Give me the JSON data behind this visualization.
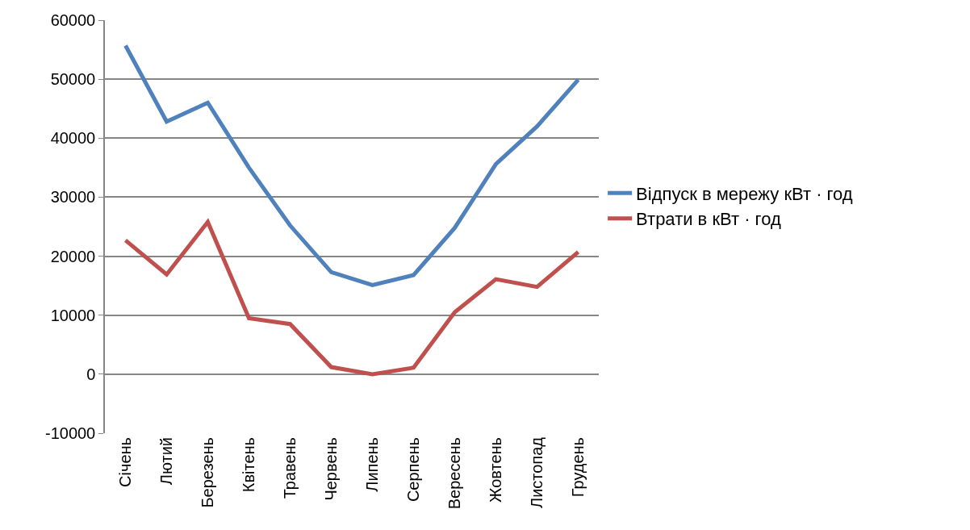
{
  "chart_data": {
    "type": "line",
    "categories": [
      "Січень",
      "Лютий",
      "Березень",
      "Квітень",
      "Травень",
      "Червень",
      "Липень",
      "Серпень",
      "Вересень",
      "Жовтень",
      "Листопад",
      "Грудень"
    ],
    "series": [
      {
        "name": "Відпуск в мережу кВт · год",
        "color": "#4f81bd",
        "values": [
          55700,
          42800,
          46000,
          35000,
          25200,
          17300,
          15100,
          16800,
          24800,
          35600,
          42000,
          49900
        ]
      },
      {
        "name": "Втрати в кВт · год",
        "color": "#c0504d",
        "values": [
          22700,
          16900,
          25800,
          9500,
          8500,
          1200,
          0,
          1100,
          10500,
          16100,
          14800,
          20700
        ]
      }
    ],
    "ylim": [
      -10000,
      60000
    ],
    "yticks": [
      -10000,
      0,
      10000,
      20000,
      30000,
      40000,
      50000,
      60000
    ],
    "grid": "y",
    "legend": "right",
    "marker": "none",
    "line_style": "solid"
  }
}
